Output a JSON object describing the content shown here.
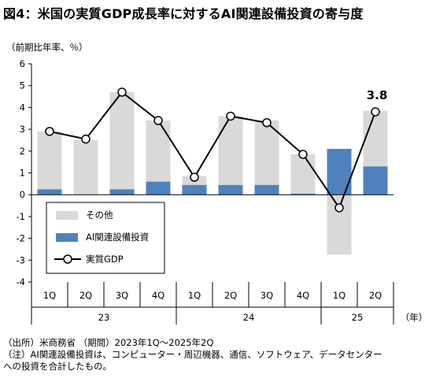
{
  "title": "図4：米国の実質GDP成長率に対するAI関連設備投資の寄与度",
  "chart_data": {
    "type": "bar",
    "ylabel": "（前期比年率、％）",
    "ylim": [
      -4,
      6
    ],
    "yticks": [
      6,
      5,
      4,
      3,
      2,
      1,
      0,
      -1,
      -2,
      -3,
      -4
    ],
    "categories": [
      "1Q",
      "2Q",
      "3Q",
      "4Q",
      "1Q",
      "2Q",
      "3Q",
      "4Q",
      "1Q",
      "2Q"
    ],
    "year_groups": [
      {
        "label": "23",
        "count": 4
      },
      {
        "label": "24",
        "count": 4
      },
      {
        "label": "25",
        "count": 2
      }
    ],
    "year_unit": "（年）",
    "series": [
      {
        "name": "AI関連設備投資",
        "type": "bar",
        "color": "#4f81bd",
        "values": [
          0.25,
          0.0,
          0.25,
          0.6,
          0.45,
          0.45,
          0.45,
          0.05,
          2.1,
          1.3
        ]
      },
      {
        "name": "その他",
        "type": "bar",
        "color": "#d9d9d9",
        "values": [
          2.65,
          2.5,
          4.45,
          2.8,
          0.4,
          3.15,
          2.95,
          1.8,
          -2.75,
          2.55
        ]
      },
      {
        "name": "実質GDP",
        "type": "line",
        "color": "#000000",
        "values": [
          2.9,
          2.55,
          4.7,
          3.4,
          0.8,
          3.6,
          3.3,
          1.85,
          -0.6,
          3.8
        ]
      }
    ],
    "annotation": "3.8",
    "grid": false,
    "legend": "bottom-left"
  },
  "notes": {
    "line1": "（出所）米商務省 （期間）2023年1Q～2025年2Q",
    "line2": "（注）AI関連設備投資は、コンピューター・周辺機器、通信、ソフトウェア、データセンター",
    "line3": "への投資を合計したもの。"
  }
}
